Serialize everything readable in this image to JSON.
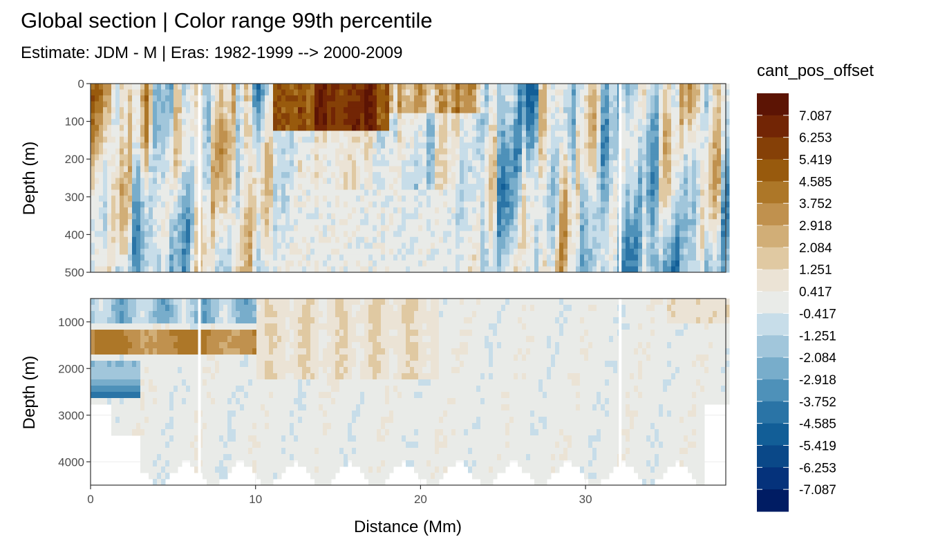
{
  "chart_data": {
    "type": "heatmap",
    "title": "Global section | Color range 99th percentile",
    "subtitle": "Estimate: JDM - M | Eras: 1982-1999 --> 2000-2009",
    "xlabel": "Distance (Mm)",
    "ylabel": "Depth (m)",
    "xlim": [
      0,
      38.5
    ],
    "x_ticks": [
      "0",
      "10",
      "20",
      "30"
    ],
    "x_tick_values": [
      0,
      10,
      20,
      30
    ],
    "grid": true,
    "panels": [
      {
        "ylim": [
          500,
          0
        ],
        "y_ticks": [
          "0",
          "100",
          "200",
          "300",
          "400",
          "500"
        ],
        "y_tick_values": [
          0,
          100,
          200,
          300,
          400,
          500
        ]
      },
      {
        "ylim": [
          4500,
          500
        ],
        "y_ticks": [
          "1000",
          "2000",
          "3000",
          "4000"
        ],
        "y_tick_values": [
          1000,
          2000,
          3000,
          4000
        ]
      }
    ],
    "gaps_x": [
      6.6,
      32.1
    ],
    "legend": {
      "title": "cant_pos_offset",
      "placement": "right",
      "labels": [
        "7.087",
        "6.253",
        "5.419",
        "4.585",
        "3.752",
        "2.918",
        "2.084",
        "1.251",
        "0.417",
        "-0.417",
        "-1.251",
        "-2.084",
        "-2.918",
        "-3.752",
        "-4.585",
        "-5.419",
        "-6.253",
        "-7.087"
      ],
      "colors": [
        "#5c1404",
        "#722505",
        "#854007",
        "#985a0d",
        "#ad7728",
        "#c0914e",
        "#d1ae77",
        "#e0c9a2",
        "#ebe3d5",
        "#e9ebe8",
        "#c7dde9",
        "#a1c6db",
        "#78adcb",
        "#4e91b9",
        "#2a74a6",
        "#125e97",
        "#0a4888",
        "#05327b",
        "#001c63"
      ]
    }
  }
}
